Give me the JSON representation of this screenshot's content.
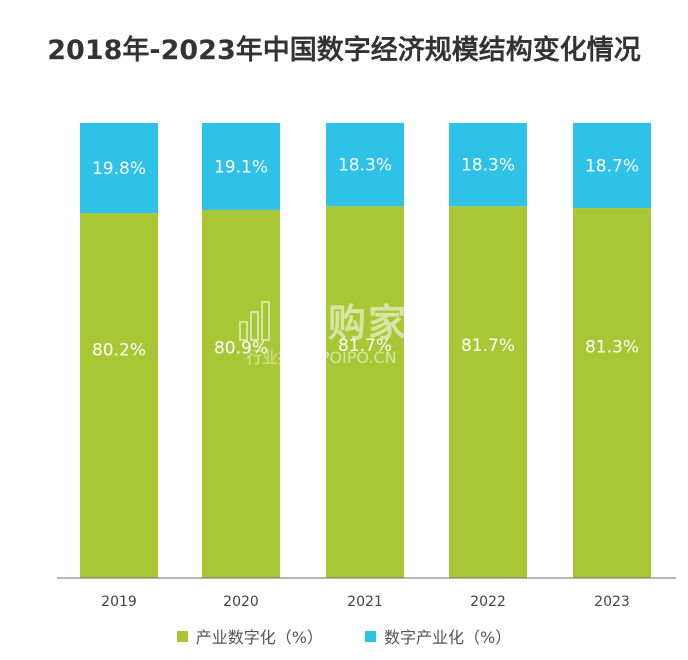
{
  "chart_data": {
    "type": "bar",
    "stacked": true,
    "title": "2018年-2023年中国数字经济规模结构变化情况",
    "categories": [
      "2019",
      "2020",
      "2021",
      "2022",
      "2023"
    ],
    "series": [
      {
        "name": "产业数字化（%）",
        "values": [
          80.2,
          80.9,
          81.7,
          81.7,
          81.3
        ],
        "labels": [
          "80.2%",
          "80.9%",
          "81.7%",
          "81.7%",
          "81.3%"
        ],
        "color": "#a9c635"
      },
      {
        "name": "数字产业化（%）",
        "values": [
          19.8,
          19.1,
          18.3,
          18.3,
          18.7
        ],
        "labels": [
          "19.8%",
          "19.1%",
          "18.3%",
          "18.3%",
          "18.7%"
        ],
        "color": "#2ec2e8"
      }
    ],
    "ylim": [
      0,
      100
    ],
    "grid": false,
    "legend_position": "bottom"
  },
  "watermark": {
    "brand": "并购家",
    "subtitle": "行业报告 IPOIPO.CN"
  }
}
